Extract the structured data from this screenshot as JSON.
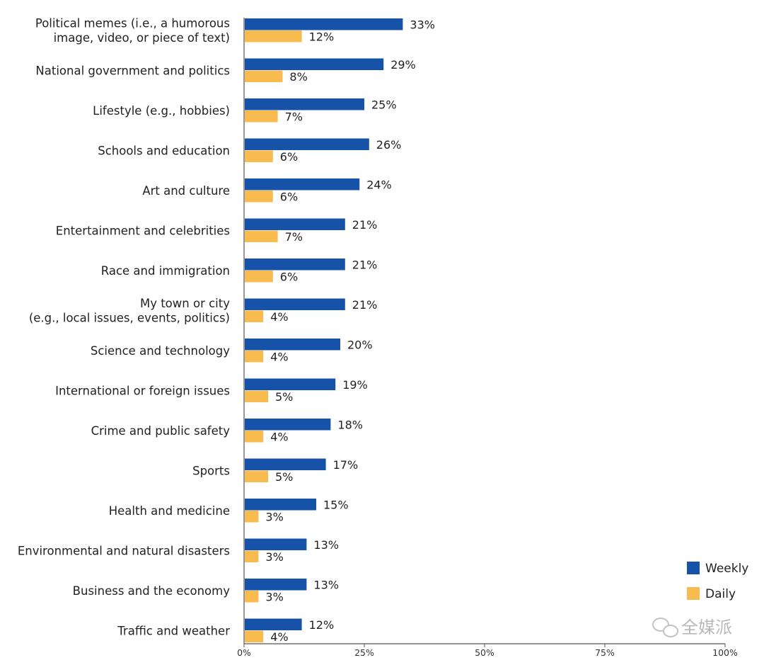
{
  "chart_data": {
    "type": "bar",
    "orientation": "horizontal",
    "categories": [
      [
        "Political memes (i.e., a humorous",
        "image, video, or piece of text)"
      ],
      [
        "National government and politics"
      ],
      [
        "Lifestyle (e.g., hobbies)"
      ],
      [
        "Schools and education"
      ],
      [
        "Art and culture"
      ],
      [
        "Entertainment and celebrities"
      ],
      [
        "Race and immigration"
      ],
      [
        "My town or city",
        "(e.g., local issues, events, politics)"
      ],
      [
        "Science and technology"
      ],
      [
        "International or foreign issues"
      ],
      [
        "Crime and public safety"
      ],
      [
        "Sports"
      ],
      [
        "Health and medicine"
      ],
      [
        "Environmental and natural disasters"
      ],
      [
        "Business and the economy"
      ],
      [
        "Traffic and weather"
      ]
    ],
    "series": [
      {
        "name": "Weekly",
        "color": "#1552a8",
        "values": [
          33,
          29,
          25,
          26,
          24,
          21,
          21,
          21,
          20,
          19,
          18,
          17,
          15,
          13,
          13,
          12
        ],
        "labels": [
          "33%",
          "29%",
          "25%",
          "26%",
          "24%",
          "21%",
          "21%",
          "21%",
          "20%",
          "19%",
          "18%",
          "17%",
          "15%",
          "13%",
          "13%",
          "12%"
        ]
      },
      {
        "name": "Daily",
        "color": "#f8bb50",
        "values": [
          12,
          8,
          7,
          6,
          6,
          7,
          6,
          4,
          4,
          5,
          4,
          5,
          3,
          3,
          3,
          4
        ],
        "labels": [
          "12%",
          "8%",
          "7%",
          "6%",
          "6%",
          "7%",
          "6%",
          "4%",
          "4%",
          "5%",
          "4%",
          "5%",
          "3%",
          "3%",
          "3%",
          "4%"
        ]
      }
    ],
    "xlim": [
      0,
      100
    ],
    "xticks": [
      0,
      25,
      50,
      75,
      100
    ],
    "xtick_labels": [
      "0%",
      "25%",
      "50%",
      "75%",
      "100%"
    ],
    "legend": {
      "position": "bottom-right",
      "entries": [
        "Weekly",
        "Daily"
      ]
    },
    "grid": false
  },
  "watermark": {
    "text": "全媒派",
    "icon": "wechat-icon"
  }
}
